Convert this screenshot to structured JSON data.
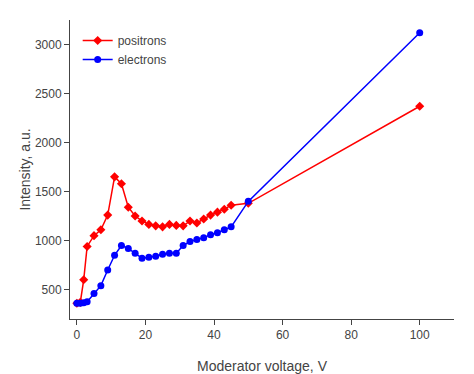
{
  "chart_data": {
    "type": "line",
    "xlabel": "Moderator voltage, V",
    "ylabel": "Intensity, a.u.",
    "x": [
      0,
      1,
      2,
      3,
      5,
      7,
      9,
      11,
      13,
      15,
      17,
      19,
      21,
      23,
      25,
      27,
      29,
      31,
      33,
      35,
      37,
      39,
      41,
      43,
      45,
      50,
      100
    ],
    "series": [
      {
        "name": "positrons",
        "color": "#ff0000",
        "marker": "diamond",
        "values": [
          360,
          370,
          600,
          940,
          1050,
          1110,
          1260,
          1650,
          1580,
          1340,
          1250,
          1200,
          1165,
          1150,
          1140,
          1165,
          1155,
          1150,
          1200,
          1180,
          1220,
          1260,
          1290,
          1320,
          1360,
          1380,
          2370
        ]
      },
      {
        "name": "electrons",
        "color": "#0000ff",
        "marker": "circle",
        "values": [
          360,
          360,
          365,
          375,
          460,
          540,
          700,
          850,
          950,
          920,
          870,
          820,
          830,
          840,
          860,
          870,
          870,
          950,
          990,
          1010,
          1030,
          1060,
          1080,
          1110,
          1140,
          1400,
          3120
        ]
      }
    ],
    "xlim": [
      -2,
      110
    ],
    "ylim": [
      200,
      3250
    ],
    "xticks": [
      0,
      20,
      40,
      60,
      80,
      100
    ],
    "yticks": [
      500,
      1000,
      1500,
      2000,
      2500,
      3000
    ],
    "grid": false,
    "legend": "upper left"
  }
}
